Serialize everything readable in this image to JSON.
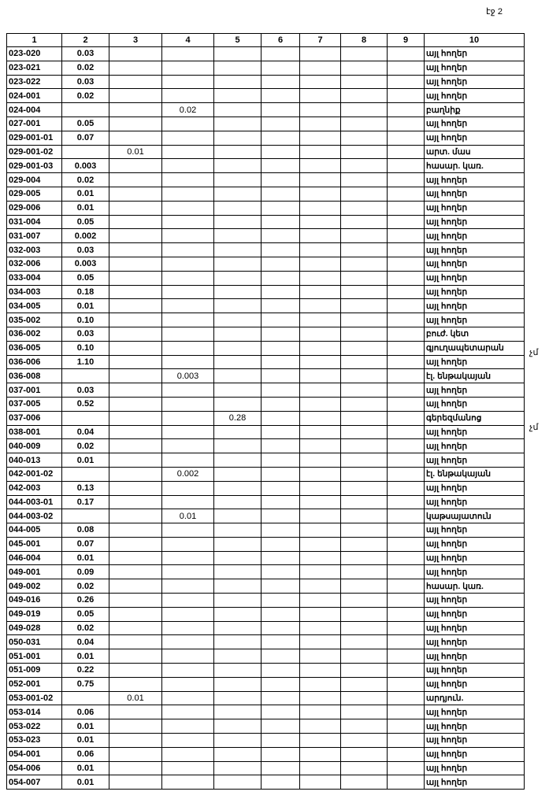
{
  "page_label": "էջ 2",
  "side_notes": [
    "չմ",
    "չմ"
  ],
  "headers": [
    "1",
    "2",
    "3",
    "4",
    "5",
    "6",
    "7",
    "8",
    "9",
    "10"
  ],
  "rows": [
    [
      "023-020",
      "0.03",
      "",
      "",
      "",
      "",
      "",
      "",
      "",
      "այլ հողեր"
    ],
    [
      "023-021",
      "0.02",
      "",
      "",
      "",
      "",
      "",
      "",
      "",
      "այլ հողեր"
    ],
    [
      "023-022",
      "0.03",
      "",
      "",
      "",
      "",
      "",
      "",
      "",
      "այլ հողեր"
    ],
    [
      "024-001",
      "0.02",
      "",
      "",
      "",
      "",
      "",
      "",
      "",
      "այլ հողեր"
    ],
    [
      "024-004",
      "",
      "",
      "0.02",
      "",
      "",
      "",
      "",
      "",
      "բաղնիք"
    ],
    [
      "027-001",
      "0.05",
      "",
      "",
      "",
      "",
      "",
      "",
      "",
      "այլ հողեր"
    ],
    [
      "029-001-01",
      "0.07",
      "",
      "",
      "",
      "",
      "",
      "",
      "",
      "այլ հողեր"
    ],
    [
      "029-001-02",
      "",
      "0.01",
      "",
      "",
      "",
      "",
      "",
      "",
      "արտ. մաս"
    ],
    [
      "029-001-03",
      "0.003",
      "",
      "",
      "",
      "",
      "",
      "",
      "",
      "հասար. կառ."
    ],
    [
      "029-004",
      "0.02",
      "",
      "",
      "",
      "",
      "",
      "",
      "",
      "այլ հողեր"
    ],
    [
      "029-005",
      "0.01",
      "",
      "",
      "",
      "",
      "",
      "",
      "",
      "այլ հողեր"
    ],
    [
      "029-006",
      "0.01",
      "",
      "",
      "",
      "",
      "",
      "",
      "",
      "այլ հողեր"
    ],
    [
      "031-004",
      "0.05",
      "",
      "",
      "",
      "",
      "",
      "",
      "",
      "այլ հողեր"
    ],
    [
      "031-007",
      "0.002",
      "",
      "",
      "",
      "",
      "",
      "",
      "",
      "այլ հողեր"
    ],
    [
      "032-003",
      "0.03",
      "",
      "",
      "",
      "",
      "",
      "",
      "",
      "այլ հողեր"
    ],
    [
      "032-006",
      "0.003",
      "",
      "",
      "",
      "",
      "",
      "",
      "",
      "այլ հողեր"
    ],
    [
      "033-004",
      "0.05",
      "",
      "",
      "",
      "",
      "",
      "",
      "",
      "այլ հողեր"
    ],
    [
      "034-003",
      "0.18",
      "",
      "",
      "",
      "",
      "",
      "",
      "",
      "այլ հողեր"
    ],
    [
      "034-005",
      "0.01",
      "",
      "",
      "",
      "",
      "",
      "",
      "",
      "այլ հողեր"
    ],
    [
      "035-002",
      "0.10",
      "",
      "",
      "",
      "",
      "",
      "",
      "",
      "այլ հողեր"
    ],
    [
      "036-002",
      "0.03",
      "",
      "",
      "",
      "",
      "",
      "",
      "",
      "բուժ. կետ"
    ],
    [
      "036-005",
      "0.10",
      "",
      "",
      "",
      "",
      "",
      "",
      "",
      "գյուղապետարան"
    ],
    [
      "036-006",
      "1.10",
      "",
      "",
      "",
      "",
      "",
      "",
      "",
      "այլ հողեր"
    ],
    [
      "036-008",
      "",
      "",
      "0.003",
      "",
      "",
      "",
      "",
      "",
      "էլ. ենթակայան"
    ],
    [
      "037-001",
      "0.03",
      "",
      "",
      "",
      "",
      "",
      "",
      "",
      "այլ հողեր"
    ],
    [
      "037-005",
      "0.52",
      "",
      "",
      "",
      "",
      "",
      "",
      "",
      "այլ հողեր"
    ],
    [
      "037-006",
      "",
      "",
      "",
      "0.28",
      "",
      "",
      "",
      "",
      "գերեզմանոց"
    ],
    [
      "038-001",
      "0.04",
      "",
      "",
      "",
      "",
      "",
      "",
      "",
      "այլ հողեր"
    ],
    [
      "040-009",
      "0.02",
      "",
      "",
      "",
      "",
      "",
      "",
      "",
      "այլ հողեր"
    ],
    [
      "040-013",
      "0.01",
      "",
      "",
      "",
      "",
      "",
      "",
      "",
      "այլ հողեր"
    ],
    [
      "042-001-02",
      "",
      "",
      "0.002",
      "",
      "",
      "",
      "",
      "",
      "էլ. ենթակայան"
    ],
    [
      "042-003",
      "0.13",
      "",
      "",
      "",
      "",
      "",
      "",
      "",
      "այլ հողեր"
    ],
    [
      "044-003-01",
      "0.17",
      "",
      "",
      "",
      "",
      "",
      "",
      "",
      "այլ հողեր"
    ],
    [
      "044-003-02",
      "",
      "",
      "0.01",
      "",
      "",
      "",
      "",
      "",
      "կաթսայատուն"
    ],
    [
      "044-005",
      "0.08",
      "",
      "",
      "",
      "",
      "",
      "",
      "",
      "այլ հողեր"
    ],
    [
      "045-001",
      "0.07",
      "",
      "",
      "",
      "",
      "",
      "",
      "",
      "այլ հողեր"
    ],
    [
      "046-004",
      "0.01",
      "",
      "",
      "",
      "",
      "",
      "",
      "",
      "այլ հողեր"
    ],
    [
      "049-001",
      "0.09",
      "",
      "",
      "",
      "",
      "",
      "",
      "",
      "այլ հողեր"
    ],
    [
      "049-002",
      "0.02",
      "",
      "",
      "",
      "",
      "",
      "",
      "",
      "հասար. կառ."
    ],
    [
      "049-016",
      "0.26",
      "",
      "",
      "",
      "",
      "",
      "",
      "",
      "այլ հողեր"
    ],
    [
      "049-019",
      "0.05",
      "",
      "",
      "",
      "",
      "",
      "",
      "",
      "այլ հողեր"
    ],
    [
      "049-028",
      "0.02",
      "",
      "",
      "",
      "",
      "",
      "",
      "",
      "այլ հողեր"
    ],
    [
      "050-031",
      "0.04",
      "",
      "",
      "",
      "",
      "",
      "",
      "",
      "այլ հողեր"
    ],
    [
      "051-001",
      "0.01",
      "",
      "",
      "",
      "",
      "",
      "",
      "",
      "այլ հողեր"
    ],
    [
      "051-009",
      "0.22",
      "",
      "",
      "",
      "",
      "",
      "",
      "",
      "այլ հողեր"
    ],
    [
      "052-001",
      "0.75",
      "",
      "",
      "",
      "",
      "",
      "",
      "",
      "այլ հողեր"
    ],
    [
      "053-001-02",
      "",
      "0.01",
      "",
      "",
      "",
      "",
      "",
      "",
      "արդյուն."
    ],
    [
      "053-014",
      "0.06",
      "",
      "",
      "",
      "",
      "",
      "",
      "",
      "այլ հողեր"
    ],
    [
      "053-022",
      "0.01",
      "",
      "",
      "",
      "",
      "",
      "",
      "",
      "այլ հողեր"
    ],
    [
      "053-023",
      "0.01",
      "",
      "",
      "",
      "",
      "",
      "",
      "",
      "այլ հողեր"
    ],
    [
      "054-001",
      "0.06",
      "",
      "",
      "",
      "",
      "",
      "",
      "",
      "այլ հողեր"
    ],
    [
      "054-006",
      "0.01",
      "",
      "",
      "",
      "",
      "",
      "",
      "",
      "այլ հողեր"
    ],
    [
      "054-007",
      "0.01",
      "",
      "",
      "",
      "",
      "",
      "",
      "",
      "այլ հողեր"
    ]
  ]
}
